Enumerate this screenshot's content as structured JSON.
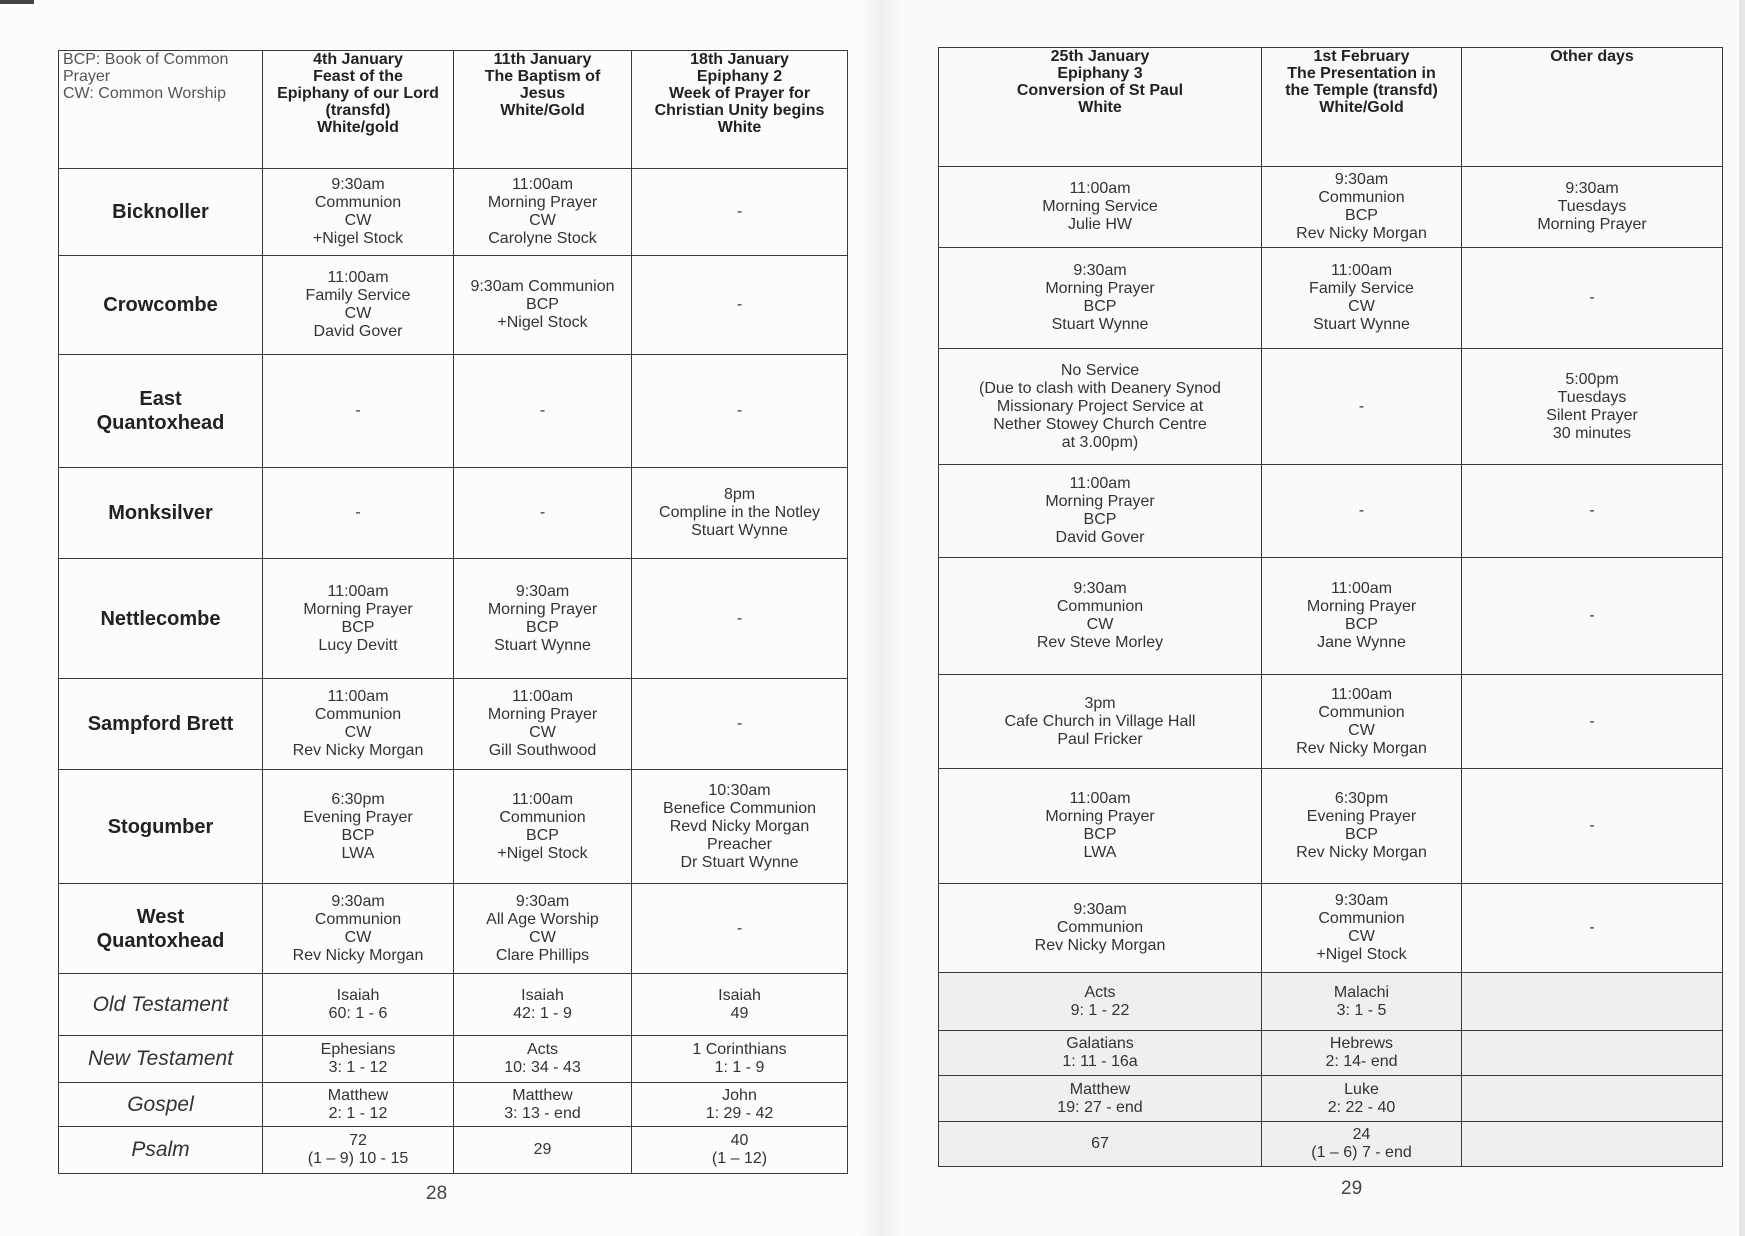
{
  "left_page": {
    "page_number": "28",
    "key": [
      "BCP: Book of Common",
      "Prayer",
      "CW: Common Worship"
    ],
    "headers": [
      [
        "4th January",
        "Feast of the",
        "Epiphany of our Lord",
        "(transfd)",
        "White/gold"
      ],
      [
        "11th January",
        "The Baptism of",
        "Jesus",
        "White/Gold"
      ],
      [
        "18th January",
        "Epiphany 2",
        "Week of Prayer for",
        "Christian Unity begins",
        "White"
      ]
    ],
    "rows": [
      {
        "church": [
          "Bicknoller"
        ],
        "cells": [
          [
            "9:30am",
            "Communion",
            "CW",
            "+Nigel Stock"
          ],
          [
            "11:00am",
            "Morning Prayer",
            "CW",
            "Carolyne Stock"
          ],
          [
            "-"
          ]
        ]
      },
      {
        "church": [
          "Crowcombe"
        ],
        "cells": [
          [
            "11:00am",
            "Family Service",
            "CW",
            "David Gover"
          ],
          [
            "9:30am Communion",
            "BCP",
            "+Nigel Stock"
          ],
          [
            "-"
          ]
        ]
      },
      {
        "church": [
          "East",
          "Quantoxhead"
        ],
        "cells": [
          [
            "-"
          ],
          [
            "-"
          ],
          [
            "-"
          ]
        ]
      },
      {
        "church": [
          "Monksilver"
        ],
        "cells": [
          [
            "-"
          ],
          [
            "-"
          ],
          [
            "8pm",
            "Compline in the Notley",
            "Stuart Wynne"
          ]
        ]
      },
      {
        "church": [
          "Nettlecombe"
        ],
        "cells": [
          [
            "11:00am",
            "Morning Prayer",
            "BCP",
            "Lucy Devitt"
          ],
          [
            "9:30am",
            "Morning Prayer",
            "BCP",
            "Stuart Wynne"
          ],
          [
            "-"
          ]
        ]
      },
      {
        "church": [
          "Sampford Brett"
        ],
        "cells": [
          [
            "11:00am",
            "Communion",
            "CW",
            "Rev Nicky Morgan"
          ],
          [
            "11:00am",
            "Morning Prayer",
            "CW",
            "Gill Southwood"
          ],
          [
            "-"
          ]
        ]
      },
      {
        "church": [
          "Stogumber"
        ],
        "cells": [
          [
            "6:30pm",
            "Evening Prayer",
            "BCP",
            "LWA"
          ],
          [
            "11:00am",
            "Communion",
            "BCP",
            "+Nigel Stock"
          ],
          [
            "10:30am",
            "Benefice Communion",
            "Revd Nicky Morgan",
            "Preacher",
            "Dr Stuart Wynne"
          ]
        ]
      },
      {
        "church": [
          "West",
          "Quantoxhead"
        ],
        "cells": [
          [
            "9:30am",
            "Communion",
            "CW",
            "Rev Nicky Morgan"
          ],
          [
            "9:30am",
            "All Age Worship",
            "CW",
            "Clare Phillips"
          ],
          [
            "-"
          ]
        ]
      }
    ],
    "readings": [
      {
        "label": [
          "Old Testament"
        ],
        "cells": [
          [
            "Isaiah",
            "60: 1 - 6"
          ],
          [
            "Isaiah",
            "42: 1 - 9"
          ],
          [
            "Isaiah",
            "49"
          ]
        ]
      },
      {
        "label": [
          "New Testament"
        ],
        "cells": [
          [
            "Ephesians",
            "3: 1 - 12"
          ],
          [
            "Acts",
            "10: 34 - 43"
          ],
          [
            "1 Corinthians",
            "1: 1 - 9"
          ]
        ]
      },
      {
        "label": [
          "Gospel"
        ],
        "cells": [
          [
            "Matthew",
            "2: 1 - 12"
          ],
          [
            "Matthew",
            "3: 13 - end"
          ],
          [
            "John",
            "1: 29 - 42"
          ]
        ]
      },
      {
        "label": [
          "Psalm"
        ],
        "cells": [
          [
            "72",
            "(1 – 9) 10 - 15"
          ],
          [
            "29"
          ],
          [
            "40",
            "(1 – 12)"
          ]
        ]
      }
    ]
  },
  "right_page": {
    "page_number": "29",
    "headers": [
      [
        "25th January",
        "Epiphany 3",
        "Conversion of St Paul",
        "White"
      ],
      [
        "1st February",
        "The Presentation in",
        "the Temple (transfd)",
        "White/Gold"
      ],
      [
        "Other days"
      ]
    ],
    "rows": [
      {
        "cells": [
          [
            "11:00am",
            "Morning Service",
            "Julie HW"
          ],
          [
            "9:30am",
            "Communion",
            "BCP",
            "Rev Nicky Morgan"
          ],
          [
            "9:30am",
            "Tuesdays",
            "Morning Prayer"
          ]
        ]
      },
      {
        "cells": [
          [
            "9:30am",
            "Morning Prayer",
            "BCP",
            "Stuart Wynne"
          ],
          [
            "11:00am",
            "Family Service",
            "CW",
            "Stuart Wynne"
          ],
          [
            "-"
          ]
        ]
      },
      {
        "cells": [
          [
            "No Service",
            "(Due to clash with Deanery Synod",
            "Missionary Project Service at",
            "Nether Stowey Church Centre",
            "at 3.00pm)"
          ],
          [
            "-"
          ],
          [
            "5:00pm",
            "Tuesdays",
            "Silent Prayer",
            "30 minutes"
          ]
        ]
      },
      {
        "cells": [
          [
            "11:00am",
            "Morning Prayer",
            "BCP",
            "David Gover"
          ],
          [
            "-"
          ],
          [
            "-"
          ]
        ]
      },
      {
        "cells": [
          [
            "9:30am",
            "Communion",
            "CW",
            "Rev Steve Morley"
          ],
          [
            "11:00am",
            "Morning Prayer",
            "BCP",
            "Jane Wynne"
          ],
          [
            "-"
          ]
        ]
      },
      {
        "cells": [
          [
            "3pm",
            "Cafe Church in Village Hall",
            "Paul Fricker"
          ],
          [
            "11:00am",
            "Communion",
            "CW",
            "Rev Nicky Morgan"
          ],
          [
            "-"
          ]
        ]
      },
      {
        "cells": [
          [
            "11:00am",
            "Morning Prayer",
            "BCP",
            "LWA"
          ],
          [
            "6:30pm",
            "Evening Prayer",
            "BCP",
            "Rev Nicky Morgan"
          ],
          [
            "-"
          ]
        ]
      },
      {
        "cells": [
          [
            "9:30am",
            "Communion",
            "Rev Nicky Morgan"
          ],
          [
            "9:30am",
            "Communion",
            "CW",
            "+Nigel Stock"
          ],
          [
            "-"
          ]
        ]
      }
    ],
    "readings": [
      {
        "cells": [
          [
            "Acts",
            "9: 1 - 22"
          ],
          [
            "Malachi",
            "3: 1 - 5"
          ],
          []
        ]
      },
      {
        "cells": [
          [
            "Galatians",
            "1: 11 - 16a"
          ],
          [
            "Hebrews",
            "2: 14- end"
          ],
          []
        ]
      },
      {
        "cells": [
          [
            "Matthew",
            "19: 27 - end"
          ],
          [
            "Luke",
            "2: 22 - 40"
          ],
          []
        ]
      },
      {
        "cells": [
          [
            "67"
          ],
          [
            "24",
            "(1 – 6) 7 - end"
          ],
          []
        ]
      }
    ]
  }
}
